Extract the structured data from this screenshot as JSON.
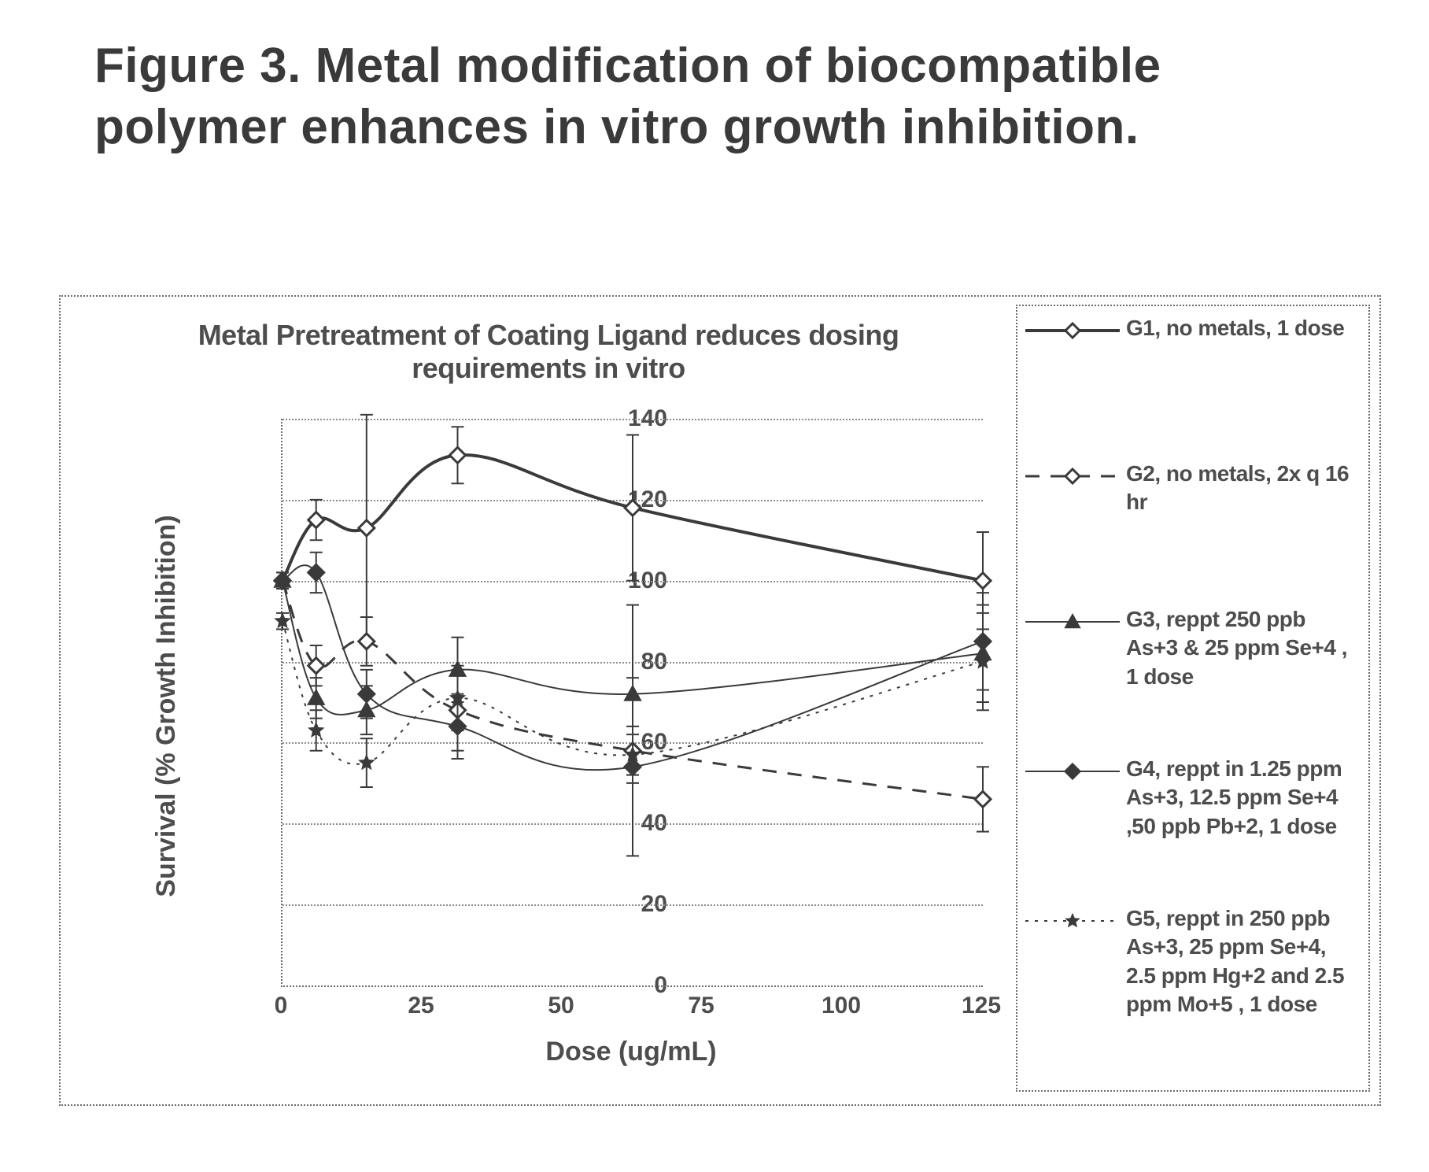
{
  "figure_title": "Figure 3. Metal modification of biocompatible polymer enhances  in vitro growth inhibition.",
  "chart": {
    "type": "line",
    "title": "Metal Pretreatment of Coating Ligand reduces dosing requirements in vitro",
    "xlabel": "Dose (ug/mL)",
    "ylabel": "Survival (% Growth Inhibition)",
    "xlim": [
      0,
      125
    ],
    "ylim": [
      0,
      140
    ],
    "xticks": [
      0,
      25,
      50,
      75,
      100,
      125
    ],
    "yticks": [
      0,
      20,
      40,
      60,
      80,
      100,
      120,
      140
    ],
    "background_color": "#ffffff",
    "grid_color": "#8b8b8b",
    "axis_color": "#6b6b6b",
    "text_color": "#4d4d4d",
    "title_fontsize": 36,
    "label_fontsize": 34,
    "tick_fontsize": 30,
    "legend_fontsize": 28,
    "series": [
      {
        "id": "G1",
        "label": "G1, no metals, 1 dose",
        "color": "#3a3a3a",
        "dash": "solid",
        "marker": "diamond-open",
        "line_width": 4,
        "x": [
          0,
          6,
          15,
          31.25,
          62.5,
          125
        ],
        "y": [
          100,
          115,
          113,
          131,
          118,
          100
        ],
        "yerr": [
          2,
          5,
          28,
          7,
          18,
          12
        ]
      },
      {
        "id": "G2",
        "label": "G2, no metals, 2x q 16 hr",
        "color": "#3a3a3a",
        "dash": "dash",
        "marker": "diamond-open",
        "line_width": 3,
        "x": [
          0,
          6,
          15,
          31.25,
          62.5,
          125
        ],
        "y": [
          100,
          79,
          85,
          68,
          58,
          46
        ],
        "yerr": [
          2,
          5,
          6,
          10,
          6,
          8
        ]
      },
      {
        "id": "G3",
        "label": "G3, reppt 250 ppb As+3 & 25 ppm Se+4 , 1 dose",
        "color": "#3a3a3a",
        "dash": "solid",
        "marker": "triangle",
        "line_width": 2,
        "x": [
          0,
          6,
          15,
          31.25,
          62.5,
          125
        ],
        "y": [
          100,
          71,
          68,
          78,
          72,
          82
        ],
        "yerr": [
          2,
          5,
          6,
          8,
          22,
          12
        ]
      },
      {
        "id": "G4",
        "label": "G4, reppt in 1.25 ppm As+3, 12.5 ppm Se+4 ,50 ppb Pb+2, 1 dose",
        "color": "#3a3a3a",
        "dash": "solid",
        "marker": "diamond",
        "line_width": 2,
        "x": [
          0,
          6,
          15,
          31.25,
          62.5,
          125
        ],
        "y": [
          100,
          102,
          72,
          64,
          54,
          85
        ],
        "yerr": [
          2,
          5,
          6,
          8,
          22,
          12
        ]
      },
      {
        "id": "G5",
        "label": "G5, reppt in 250 ppb As+3, 25 ppm Se+4, 2.5 ppm Hg+2 and 2.5 ppm Mo+5 , 1 dose",
        "color": "#3a3a3a",
        "dash": "dot",
        "marker": "star",
        "line_width": 2,
        "x": [
          0,
          6,
          15,
          31.25,
          62.5,
          125
        ],
        "y": [
          90,
          63,
          55,
          71,
          57,
          80
        ],
        "yerr": [
          2,
          5,
          6,
          8,
          5,
          12
        ]
      }
    ],
    "legend_item_tops": [
      10,
      195,
      380,
      570,
      760
    ]
  }
}
